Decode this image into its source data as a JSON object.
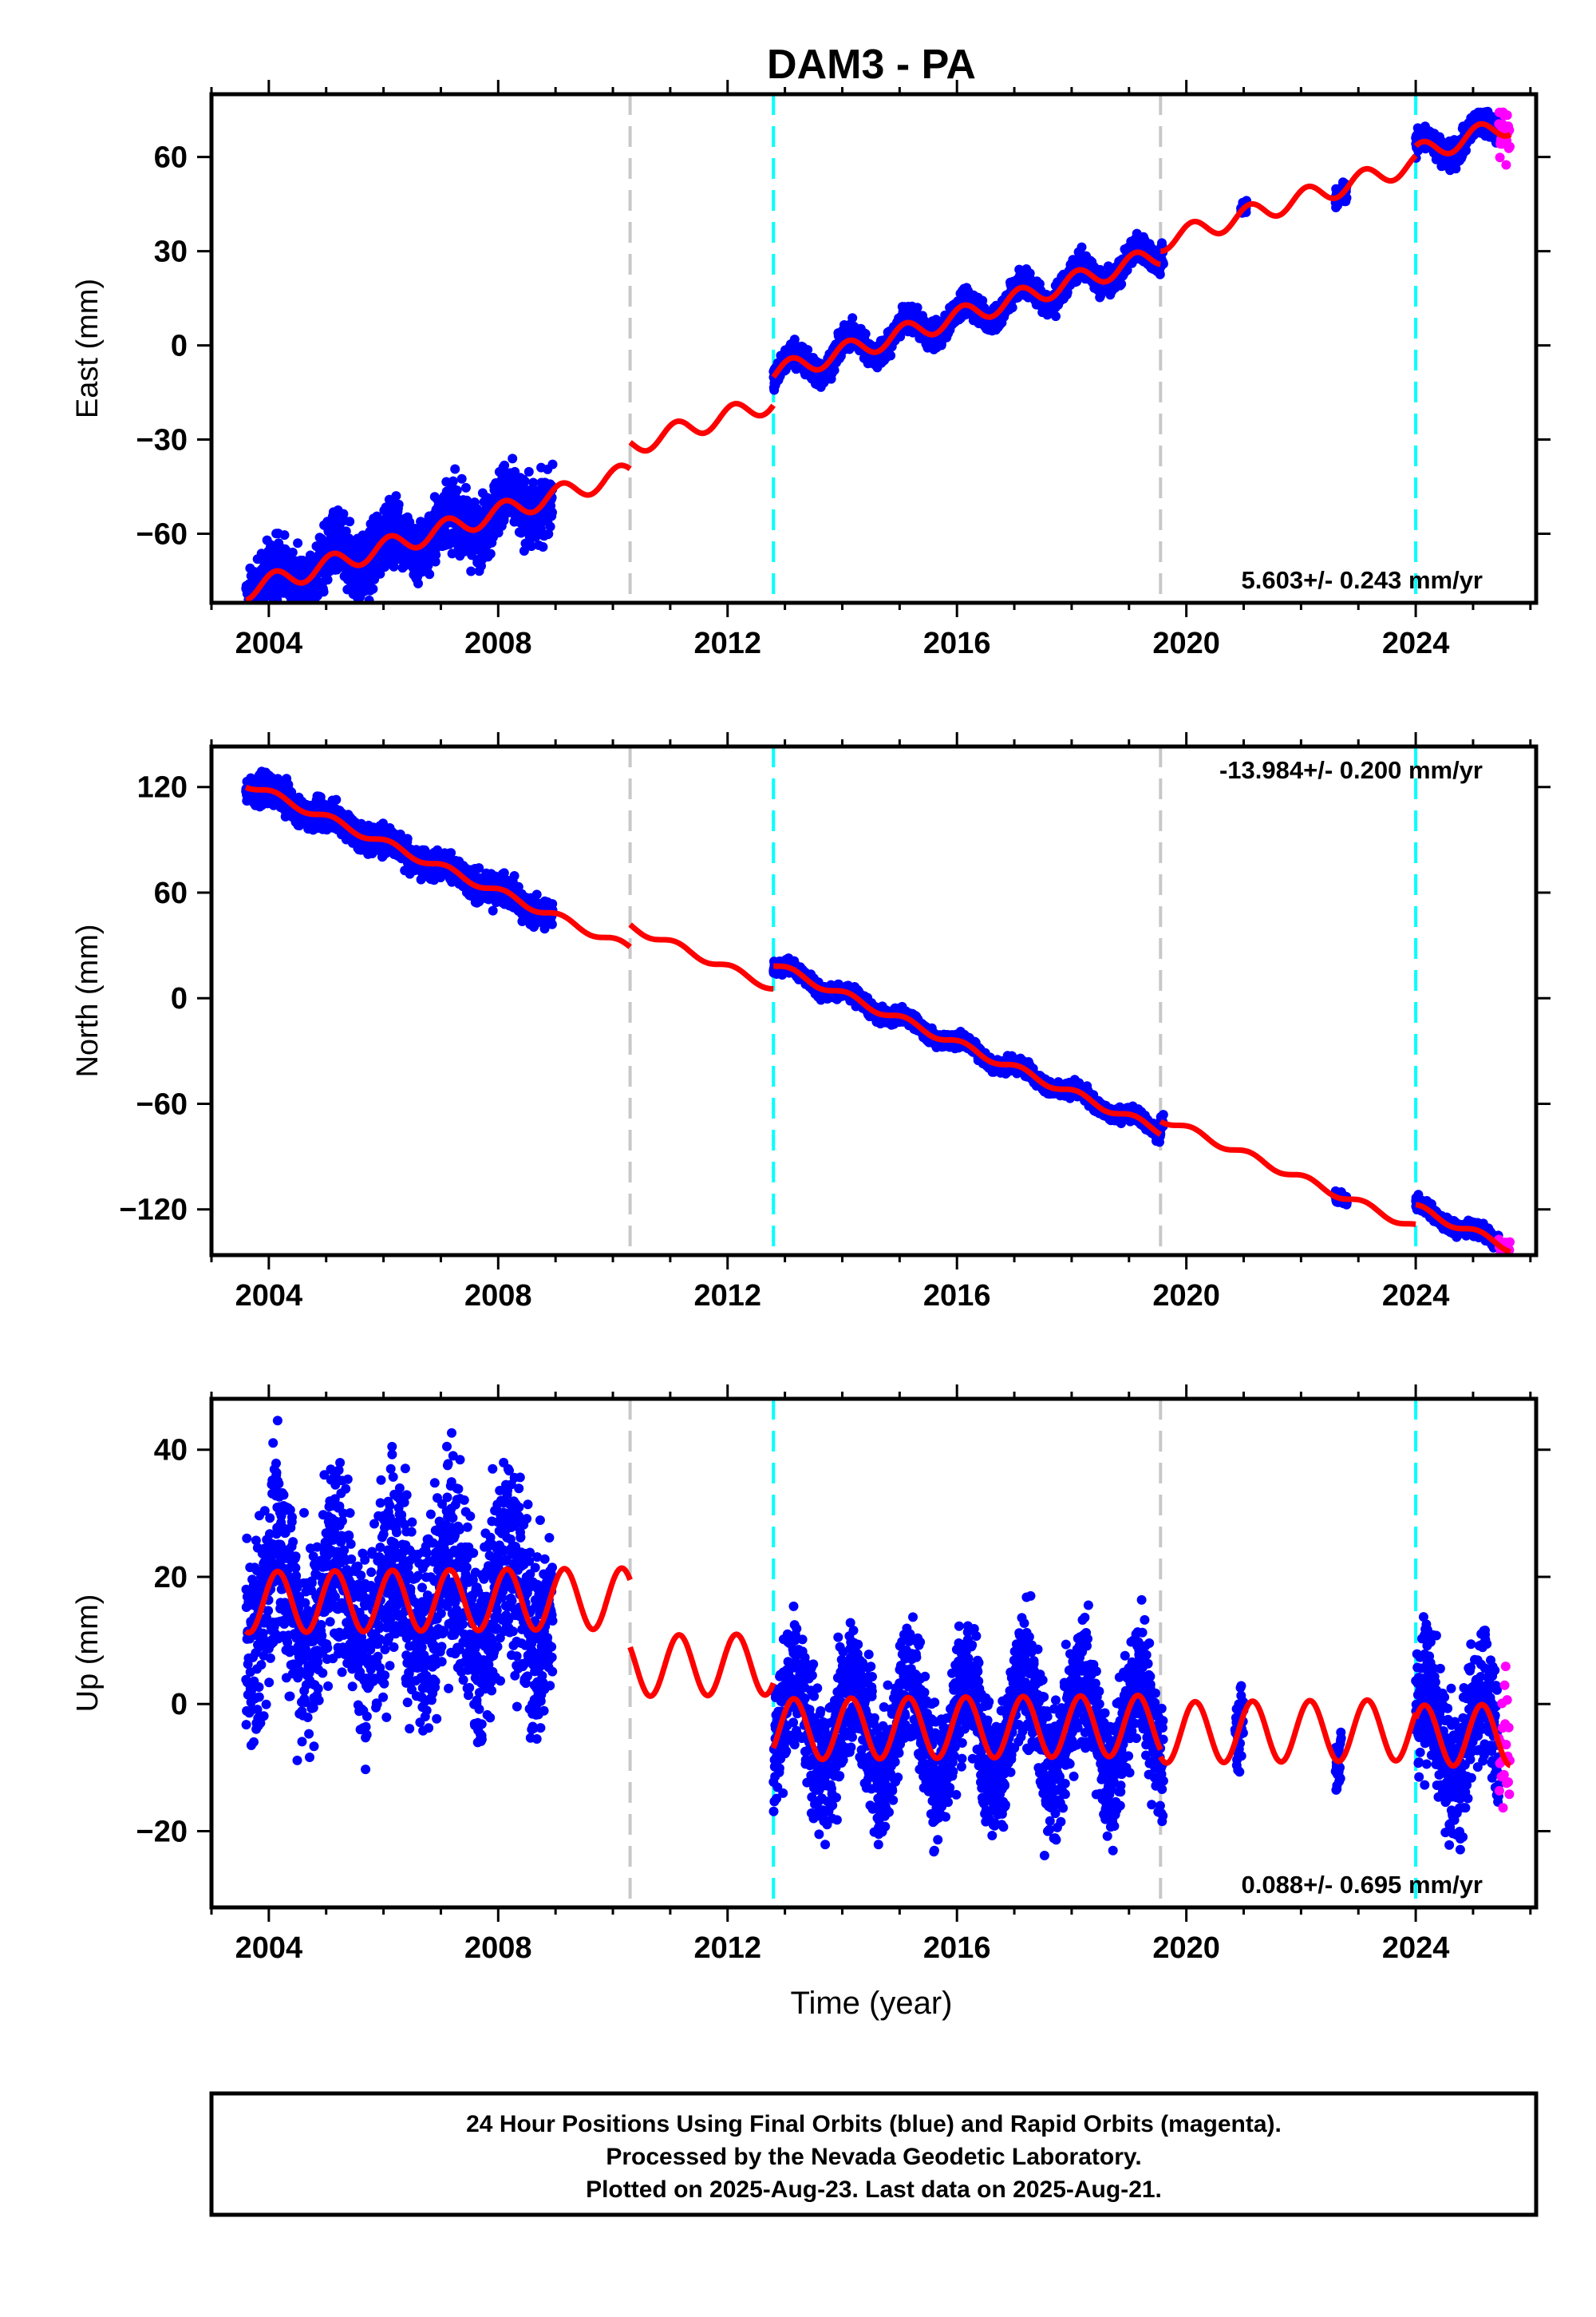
{
  "chart_data": {
    "type": "scatter",
    "title": "DAM3 - PA",
    "xlabel": "Time (year)",
    "xlim": [
      2003.0,
      2026.1
    ],
    "x_ticks": [
      2004,
      2008,
      2012,
      2016,
      2020,
      2024
    ],
    "x_tick_labels": [
      "2004",
      "2008",
      "2012",
      "2016",
      "2020",
      "2024"
    ],
    "breaks_gray": [
      2010.3,
      2019.55
    ],
    "breaks_cyan": [
      2012.8,
      2024.0
    ],
    "series_colors": {
      "final": "#0000ff",
      "rapid": "#ff00ff",
      "model": "#ff0000",
      "gray_break": "#c8c8c8",
      "cyan_break": "#00ffff"
    },
    "panels": [
      {
        "name": "east",
        "ylabel": "East (mm)",
        "ylim": [
          -82,
          80
        ],
        "y_ticks": [
          -60,
          -30,
          0,
          30,
          60
        ],
        "y_tick_labels": [
          "−60",
          "−30",
          "0",
          "30",
          "60"
        ],
        "rate": "5.603+/- 0.243 mm/yr",
        "rate_position": "bottom-right",
        "final_orbits": [
          {
            "start": 2003.6,
            "end": 2008.95,
            "amp": 3,
            "scatter": 5
          },
          {
            "start": 2012.8,
            "end": 2019.6,
            "amp": 2.5,
            "scatter": 2
          },
          {
            "start": 2020.95,
            "end": 2021.05,
            "amp": 0,
            "scatter": 1
          },
          {
            "start": 2022.6,
            "end": 2022.8,
            "amp": 0,
            "scatter": 1.5
          },
          {
            "start": 2024.0,
            "end": 2025.45,
            "amp": 2,
            "scatter": 2
          }
        ],
        "rapid_orbits": {
          "start": 2025.45,
          "end": 2025.65,
          "scatter": 4
        },
        "model_segments": [
          {
            "start": 2003.6,
            "end": 2010.3,
            "y0": -78,
            "rate": 5.603,
            "amp": 3.2,
            "phase": 0.9
          },
          {
            "start": 2010.3,
            "end": 2012.8,
            "y0": -32,
            "rate": 5.603,
            "amp": 3.2,
            "phase": 0.9
          },
          {
            "start": 2012.8,
            "end": 2019.55,
            "y0": -9,
            "rate": 5.603,
            "amp": 3.2,
            "phase": 0.9
          },
          {
            "start": 2019.55,
            "end": 2024.0,
            "y0": 33,
            "rate": 5.603,
            "amp": 3.2,
            "phase": 0.9
          },
          {
            "start": 2024.0,
            "end": 2025.65,
            "y0": 61,
            "rate": 5.603,
            "amp": 3.2,
            "phase": 0.9
          }
        ]
      },
      {
        "name": "north",
        "ylabel": "North (mm)",
        "ylim": [
          -146,
          143
        ],
        "y_ticks": [
          -120,
          -60,
          0,
          60,
          120
        ],
        "y_tick_labels": [
          "−120",
          "−60",
          "0",
          "60",
          "120"
        ],
        "rate": "-13.984+/- 0.200 mm/yr",
        "rate_position": "top-right",
        "final_orbits": [
          {
            "start": 2003.6,
            "end": 2008.95,
            "amp": 1.5,
            "scatter": 4
          },
          {
            "start": 2012.8,
            "end": 2019.6,
            "amp": 1.5,
            "scatter": 2
          },
          {
            "start": 2022.6,
            "end": 2022.8,
            "amp": 0,
            "scatter": 1.5
          },
          {
            "start": 2024.0,
            "end": 2025.45,
            "amp": 1,
            "scatter": 2
          }
        ],
        "rapid_orbits": {
          "start": 2025.45,
          "end": 2025.65,
          "scatter": 3
        },
        "model_segments": [
          {
            "start": 2003.6,
            "end": 2010.3,
            "y0": 122,
            "rate": -13.984,
            "amp": 2.2,
            "phase": 0.9
          },
          {
            "start": 2010.3,
            "end": 2012.8,
            "y0": 41,
            "rate": -13.984,
            "amp": 2.2,
            "phase": 0.9
          },
          {
            "start": 2012.8,
            "end": 2019.55,
            "y0": 19,
            "rate": -13.984,
            "amp": 2.2,
            "phase": 0.9
          },
          {
            "start": 2019.55,
            "end": 2024.0,
            "y0": -68,
            "rate": -13.984,
            "amp": 2.2,
            "phase": 0.9
          },
          {
            "start": 2024.0,
            "end": 2025.65,
            "y0": -119,
            "rate": -13.984,
            "amp": 2.2,
            "phase": 0.9
          }
        ]
      },
      {
        "name": "up",
        "ylabel": "Up (mm)",
        "ylim": [
          -32,
          48
        ],
        "y_ticks": [
          -20,
          0,
          20,
          40
        ],
        "y_tick_labels": [
          "−20",
          "0",
          "20",
          "40"
        ],
        "rate": "0.088+/- 0.695 mm/yr",
        "rate_position": "bottom-right",
        "final_orbits": [
          {
            "start": 2003.6,
            "end": 2008.95,
            "amp": 5,
            "scatter": 8
          },
          {
            "start": 2012.8,
            "end": 2019.6,
            "amp": 5,
            "scatter": 5
          },
          {
            "start": 2020.85,
            "end": 2021.0,
            "amp": 0,
            "scatter": 3
          },
          {
            "start": 2022.6,
            "end": 2022.7,
            "amp": 0,
            "scatter": 3
          },
          {
            "start": 2024.0,
            "end": 2025.45,
            "amp": 4,
            "scatter": 5
          }
        ],
        "rapid_orbits": {
          "start": 2025.45,
          "end": 2025.65,
          "scatter": 6
        },
        "model_segments": [
          {
            "start": 2003.6,
            "end": 2010.3,
            "y0": 16,
            "rate": 0.088,
            "amp": 4.8,
            "phase": 0.6
          },
          {
            "start": 2010.3,
            "end": 2012.8,
            "y0": 6,
            "rate": 0.088,
            "amp": 4.8,
            "phase": 0.6
          },
          {
            "start": 2012.8,
            "end": 2019.55,
            "y0": -4,
            "rate": 0.088,
            "amp": 4.8,
            "phase": 0.6
          },
          {
            "start": 2019.55,
            "end": 2024.0,
            "y0": -4.5,
            "rate": 0.088,
            "amp": 4.8,
            "phase": 0.6
          },
          {
            "start": 2024.0,
            "end": 2025.65,
            "y0": -5,
            "rate": 0.088,
            "amp": 4.8,
            "phase": 0.6
          }
        ]
      }
    ]
  },
  "footer": {
    "line1": "24 Hour Positions Using Final Orbits (blue) and Rapid Orbits (magenta).",
    "line2": "Processed by the Nevada Geodetic Laboratory.",
    "line3": "Plotted on 2025-Aug-23. Last data on 2025-Aug-21."
  }
}
